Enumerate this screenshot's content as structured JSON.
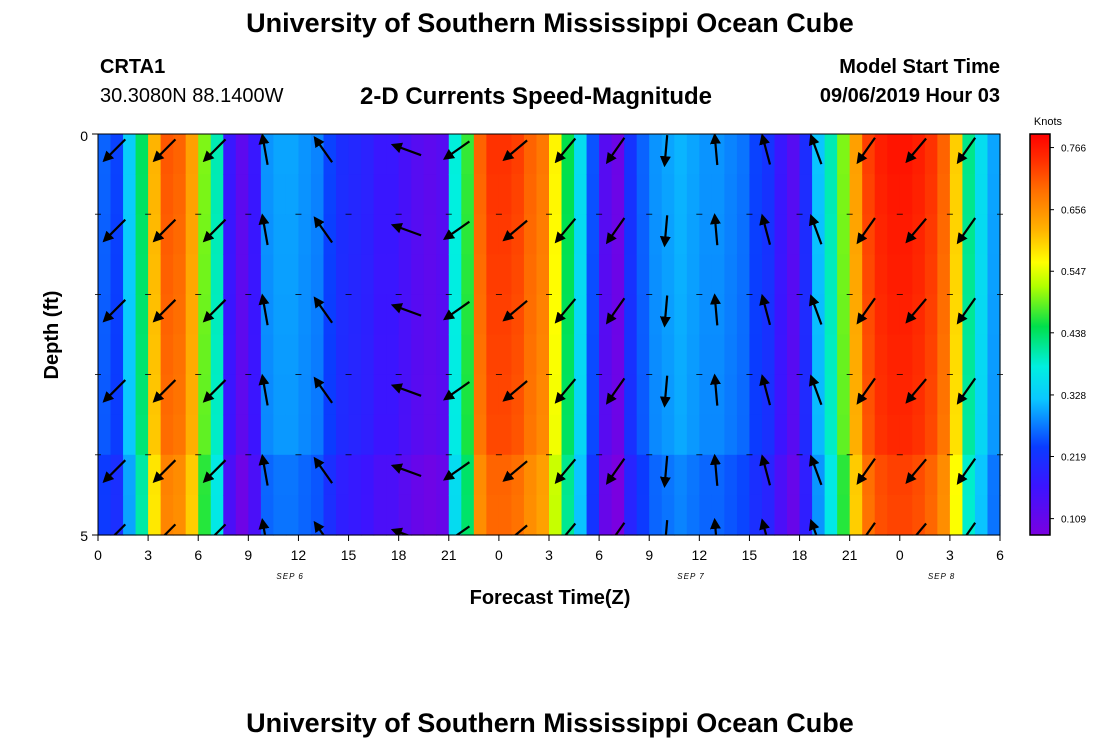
{
  "header": {
    "title": "University of Southern Mississippi Ocean Cube",
    "station_code": "CRTA1",
    "station_coords": "30.3080N 88.1400W",
    "chart_title": "2-D Currents Speed-Magnitude",
    "start_label": "Model Start Time",
    "start_value": "09/06/2019 Hour 03"
  },
  "footer": {
    "title": "University of Southern Mississippi Ocean Cube"
  },
  "chart_data": {
    "type": "heatmap",
    "title": "2-D Currents Speed-Magnitude",
    "xlabel": "Forecast Time(Z)",
    "ylabel": "Depth (ft)",
    "x_range_hours": [
      0,
      54
    ],
    "y_range": [
      0,
      5
    ],
    "y_ticks": [
      "0",
      "5"
    ],
    "x_tick_labels": [
      "0",
      "3",
      "6",
      "9",
      "12",
      "15",
      "18",
      "21",
      "0",
      "3",
      "6",
      "9",
      "12",
      "15",
      "18",
      "21",
      "0",
      "3",
      "6"
    ],
    "date_labels": [
      {
        "text": "SEP 6",
        "hour": 11.5
      },
      {
        "text": "SEP 7",
        "hour": 35.5
      },
      {
        "text": "SEP 8",
        "hour": 50.5
      }
    ],
    "colorbar": {
      "unit": "Knots",
      "min": 0.08,
      "max": 0.79,
      "tick_values": [
        "0.766",
        "0.656",
        "0.547",
        "0.438",
        "0.328",
        "0.219",
        "0.109"
      ]
    },
    "speed_profile_knots": [
      0.26,
      0.24,
      0.33,
      0.44,
      0.62,
      0.71,
      0.7,
      0.64,
      0.5,
      0.4,
      0.17,
      0.12,
      0.17,
      0.29,
      0.3,
      0.3,
      0.29,
      0.28,
      0.24,
      0.21,
      0.2,
      0.19,
      0.17,
      0.17,
      0.15,
      0.13,
      0.12,
      0.13,
      0.38,
      0.47,
      0.7,
      0.74,
      0.74,
      0.73,
      0.7,
      0.68,
      0.57,
      0.45,
      0.35,
      0.25,
      0.13,
      0.1,
      0.22,
      0.26,
      0.29,
      0.3,
      0.31,
      0.3,
      0.29,
      0.29,
      0.28,
      0.27,
      0.24,
      0.22,
      0.17,
      0.13,
      0.21,
      0.32,
      0.4,
      0.5,
      0.64,
      0.73,
      0.76,
      0.77,
      0.77,
      0.76,
      0.74,
      0.7,
      0.6,
      0.42,
      0.35,
      0.3
    ],
    "arrow_hours": [
      1,
      4,
      7,
      10,
      13.5,
      18.5,
      21.5,
      25,
      28,
      31,
      34,
      37,
      40,
      43,
      46,
      49,
      52
    ],
    "arrow_depths": [
      0.2,
      1.2,
      2.2,
      3.2,
      4.2,
      5.0
    ],
    "arrow_directions_deg": [
      135,
      135,
      135,
      260,
      235,
      200,
      145,
      140,
      130,
      125,
      95,
      265,
      255,
      250,
      125,
      130,
      125
    ]
  }
}
